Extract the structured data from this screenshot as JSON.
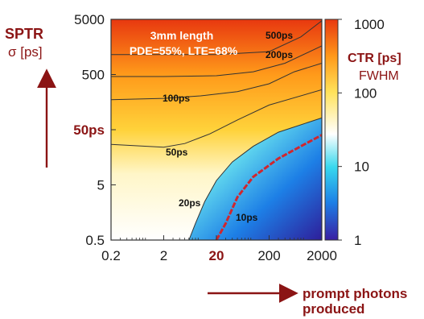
{
  "chart_data": {
    "type": "heatmap",
    "title_lines": [
      "3mm length",
      "PDE=55%, LTE=68%"
    ],
    "y_label_main": "SPTR",
    "y_label_sub": "σ [ps]",
    "x_label_lines": [
      "prompt photons",
      "produced"
    ],
    "colorbar_label_lines": [
      "CTR [ps]",
      "FWHM"
    ],
    "x_scale": "log",
    "y_scale": "log",
    "colorbar_scale": "log",
    "x_range": [
      0.2,
      2000
    ],
    "y_range": [
      0.5,
      5000
    ],
    "colorbar_range": [
      1,
      1000
    ],
    "x_ticks": [
      "0.2",
      "2",
      "20",
      "200",
      "2000"
    ],
    "x_highlight_tick": "20",
    "y_ticks": [
      "0.5",
      "5",
      "50ps",
      "500",
      "5000"
    ],
    "y_highlight_tick": "50ps",
    "colorbar_ticks": [
      "1",
      "10",
      "100",
      "1000"
    ],
    "colormap": [
      "#3a1fa3",
      "#1d7fe6",
      "#38d8ee",
      "#ffffff",
      "#ffe25a",
      "#ff9a1a",
      "#e8380f"
    ],
    "contours": [
      {
        "label": "500ps",
        "points": [
          [
            0.2,
            1150
          ],
          [
            2,
            1150
          ],
          [
            20,
            1150
          ],
          [
            200,
            1300
          ],
          [
            800,
            2400
          ],
          [
            2000,
            4700
          ]
        ]
      },
      {
        "label": "200ps",
        "points": [
          [
            0.2,
            460
          ],
          [
            2,
            460
          ],
          [
            20,
            475
          ],
          [
            100,
            560
          ],
          [
            400,
            800
          ],
          [
            2000,
            1650
          ]
        ]
      },
      {
        "label": "100ps",
        "points": [
          [
            0.2,
            175
          ],
          [
            2,
            185
          ],
          [
            10,
            205
          ],
          [
            50,
            245
          ],
          [
            200,
            340
          ],
          [
            600,
            560
          ],
          [
            2000,
            800
          ]
        ]
      },
      {
        "label": "50ps",
        "points": [
          [
            0.2,
            27
          ],
          [
            2,
            24
          ],
          [
            5,
            28
          ],
          [
            15,
            42
          ],
          [
            50,
            75
          ],
          [
            200,
            140
          ],
          [
            2000,
            265
          ]
        ]
      },
      {
        "label": "20ps",
        "points": [
          [
            6,
            0.5
          ],
          [
            8,
            1
          ],
          [
            12,
            2.5
          ],
          [
            20,
            6
          ],
          [
            40,
            13
          ],
          [
            100,
            25
          ],
          [
            300,
            45
          ],
          [
            2000,
            82
          ]
        ]
      },
      {
        "label": "10ps",
        "points": [
          [
            20,
            0.5
          ],
          [
            30,
            1
          ],
          [
            50,
            3
          ],
          [
            100,
            7
          ],
          [
            300,
            15
          ],
          [
            800,
            25
          ],
          [
            2000,
            40
          ]
        ]
      }
    ],
    "highlight_contour": "10ps",
    "highlight_color": "#d0262e"
  }
}
